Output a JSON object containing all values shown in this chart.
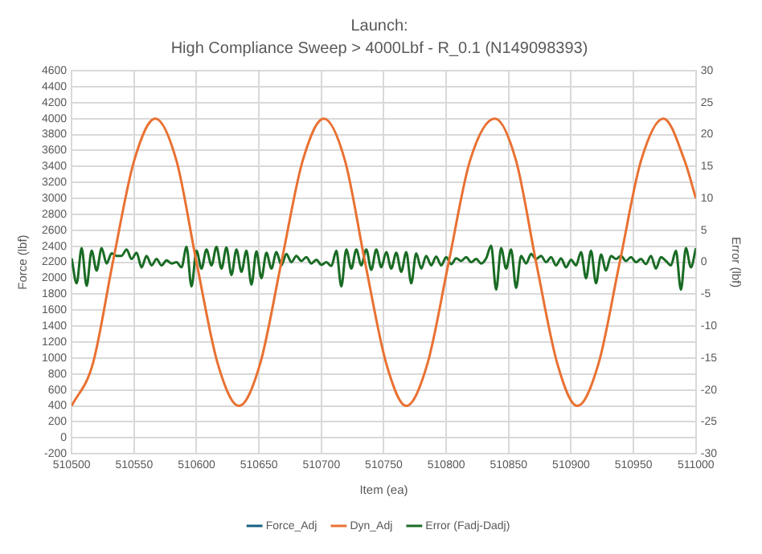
{
  "chart_data": {
    "type": "line",
    "title": "Launch:",
    "subtitle": "High Compliance Sweep > 4000Lbf - R_0.1 (N149098393)",
    "xlabel": "Item (ea)",
    "ylabel": "Force (lbf)",
    "y2label": "Error (lbf)",
    "xlim": [
      510500,
      511000
    ],
    "xticks": [
      510500,
      510550,
      510600,
      510650,
      510700,
      510750,
      510800,
      510850,
      510900,
      510950,
      511000
    ],
    "ylim": [
      -200,
      4600
    ],
    "yticks": [
      -200,
      0,
      200,
      400,
      600,
      800,
      1000,
      1200,
      1400,
      1600,
      1800,
      2000,
      2200,
      2400,
      2600,
      2800,
      3000,
      3200,
      3400,
      3600,
      3800,
      4000,
      4200,
      4400,
      4600
    ],
    "y2lim": [
      -30,
      30
    ],
    "y2ticks": [
      -30,
      -25,
      -20,
      -15,
      -10,
      -5,
      0,
      5,
      10,
      15,
      20,
      25,
      30
    ],
    "grid": true,
    "legend": "bottom",
    "marker": "none",
    "line_style": "solid",
    "series": [
      {
        "name": "Force_Adj",
        "color": "#156082"
      },
      {
        "name": "Dyn_Adj",
        "color": "#e97132",
        "x": [
          510500,
          510517,
          510533,
          510550,
          510567,
          510584,
          510600,
          510617,
          510634,
          510651,
          510668,
          510685,
          510702,
          510719,
          510735,
          510752,
          510768,
          510785,
          510802,
          510819,
          510839,
          510856,
          510872,
          510889,
          510905,
          510922,
          510939,
          510956,
          510974,
          510991,
          511000
        ],
        "values": [
          400,
          930,
          2200,
          3470,
          4000,
          3470,
          2200,
          930,
          400,
          930,
          2200,
          3470,
          4000,
          3470,
          2200,
          930,
          400,
          930,
          2200,
          3470,
          4000,
          3470,
          2200,
          930,
          400,
          930,
          2200,
          3470,
          4000,
          3470,
          3000
        ]
      },
      {
        "name": "Error (Fadj-Dadj)",
        "color": "#196b24",
        "axis": "y2",
        "x": [
          510500,
          510504,
          510508,
          510512,
          510516,
          510520,
          510524,
          510528,
          510532,
          510536,
          510540,
          510544,
          510548,
          510552,
          510556,
          510560,
          510564,
          510568,
          510572,
          510576,
          510580,
          510584,
          510588,
          510592,
          510596,
          510600,
          510604,
          510608,
          510612,
          510616,
          510620,
          510624,
          510628,
          510632,
          510636,
          510640,
          510644,
          510648,
          510652,
          510656,
          510660,
          510664,
          510668,
          510672,
          510676,
          510680,
          510684,
          510688,
          510692,
          510696,
          510700,
          510704,
          510708,
          510712,
          510716,
          510720,
          510724,
          510728,
          510732,
          510736,
          510740,
          510744,
          510748,
          510752,
          510756,
          510760,
          510764,
          510768,
          510772,
          510776,
          510780,
          510784,
          510788,
          510792,
          510796,
          510800,
          510804,
          510808,
          510812,
          510816,
          510820,
          510824,
          510828,
          510832,
          510836,
          510840,
          510844,
          510848,
          510852,
          510856,
          510860,
          510864,
          510868,
          510872,
          510876,
          510880,
          510884,
          510888,
          510892,
          510896,
          510900,
          510904,
          510908,
          510912,
          510916,
          510920,
          510924,
          510928,
          510932,
          510936,
          510940,
          510944,
          510948,
          510952,
          510956,
          510960,
          510964,
          510968,
          510972,
          510976,
          510980,
          510984,
          510988,
          510992,
          510996,
          511000
        ],
        "values": [
          0.6,
          -3.3,
          2.2,
          -3.7,
          1.8,
          -1.3,
          2.2,
          -0.2,
          1.4,
          1.0,
          1.0,
          2.0,
          0.5,
          1.5,
          -0.8,
          1.0,
          -0.5,
          0.5,
          -0.5,
          0.3,
          -0.2,
          0.0,
          -0.8,
          2.4,
          -3.8,
          1.8,
          -1.0,
          2.0,
          -0.5,
          2.4,
          -1.0,
          2.3,
          -2.0,
          2.0,
          -1.5,
          1.8,
          -3.5,
          1.7,
          -2.5,
          1.5,
          -1.0,
          1.6,
          -0.5,
          1.3,
          0.0,
          1.0,
          0.2,
          0.8,
          -0.2,
          0.4,
          -0.4,
          0.0,
          -0.6,
          1.8,
          -3.8,
          2.0,
          -1.0,
          2.0,
          -0.5,
          2.0,
          -1.2,
          2.0,
          -0.8,
          1.6,
          -1.0,
          1.5,
          -1.5,
          1.6,
          -3.3,
          1.4,
          -1.0,
          1.0,
          -0.5,
          0.9,
          -0.5,
          0.8,
          -0.3,
          0.6,
          0.2,
          0.8,
          0.0,
          0.5,
          -0.2,
          0.6,
          2.6,
          -4.3,
          2.2,
          -1.0,
          2.0,
          -4.0,
          1.0,
          -0.2,
          1.3,
          0.5,
          1.0,
          0.0,
          0.8,
          -0.5,
          0.6,
          -0.8,
          0.4,
          -0.5,
          1.6,
          -2.5,
          1.8,
          -3.3,
          1.2,
          -1.3,
          1.0,
          0.5,
          1.0,
          0.2,
          0.8,
          0.0,
          0.5,
          -0.3,
          1.0,
          -1.0,
          0.8,
          0.2,
          -0.5,
          1.8,
          -4.3,
          2.2,
          -0.8,
          2.2
        ]
      }
    ]
  }
}
